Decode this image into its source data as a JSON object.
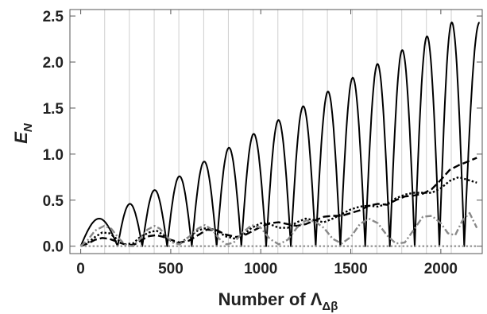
{
  "chart_data": {
    "type": "line",
    "xlabel": "Number of Λ",
    "xlabel_subscript": "Δβ",
    "ylabel": "E",
    "ylabel_subscript": "N",
    "xlim": [
      -60,
      2230
    ],
    "ylim": [
      -0.08,
      2.57
    ],
    "x_ticks": [
      0,
      500,
      1000,
      1500,
      2000
    ],
    "x_tick_labels": [
      "0",
      "500",
      "1000",
      "1500",
      "2000"
    ],
    "y_ticks": [
      0.0,
      0.5,
      1.0,
      1.5,
      2.0,
      2.5
    ],
    "y_tick_labels": [
      "0.0",
      "0.5",
      "1.0",
      "1.5",
      "2.0",
      "2.5"
    ],
    "grid_x": [
      133,
      270,
      408,
      545,
      683,
      820,
      958,
      1095,
      1233,
      1370,
      1508,
      1645,
      1783,
      1920,
      2058
    ],
    "legend": "none",
    "series": [
      {
        "style": "solid",
        "color": "#000000",
        "lobe_zeros": [
          0,
          205,
          342,
          480,
          617,
          755,
          892,
          1030,
          1167,
          1305,
          1442,
          1580,
          1717,
          1855,
          1992,
          2130
        ],
        "lobe_peaks": [
          {
            "x": 0,
            "y": 0.0
          },
          {
            "x": 273,
            "y": 0.3
          },
          {
            "x": 411,
            "y": 0.46
          },
          {
            "x": 548,
            "y": 0.61
          },
          {
            "x": 686,
            "y": 0.76
          },
          {
            "x": 823,
            "y": 0.92
          },
          {
            "x": 961,
            "y": 1.07
          },
          {
            "x": 1098,
            "y": 1.22
          },
          {
            "x": 1236,
            "y": 1.37
          },
          {
            "x": 1373,
            "y": 1.52
          },
          {
            "x": 1511,
            "y": 1.68
          },
          {
            "x": 1648,
            "y": 1.83
          },
          {
            "x": 1786,
            "y": 1.98
          },
          {
            "x": 1923,
            "y": 2.13
          },
          {
            "x": 2061,
            "y": 2.28
          },
          {
            "x": 2210,
            "y": 2.43
          }
        ]
      },
      {
        "style": "dashed",
        "color": "#000000",
        "x": [
          0,
          40,
          80,
          120,
          160,
          200,
          260,
          300,
          340,
          380,
          420,
          460,
          500,
          550,
          600,
          660,
          700,
          760,
          800,
          860,
          900,
          950,
          1000,
          1050,
          1100,
          1150,
          1200,
          1250,
          1300,
          1350,
          1400,
          1450,
          1500,
          1550,
          1600,
          1650,
          1700,
          1750,
          1800,
          1850,
          1900,
          1950,
          2000,
          2050,
          2100,
          2150,
          2200
        ],
        "y": [
          0.0,
          0.03,
          0.07,
          0.09,
          0.08,
          0.05,
          0.01,
          0.02,
          0.07,
          0.11,
          0.12,
          0.1,
          0.07,
          0.04,
          0.06,
          0.13,
          0.18,
          0.17,
          0.13,
          0.1,
          0.11,
          0.16,
          0.21,
          0.25,
          0.26,
          0.24,
          0.22,
          0.24,
          0.28,
          0.32,
          0.33,
          0.33,
          0.36,
          0.39,
          0.44,
          0.46,
          0.45,
          0.5,
          0.54,
          0.55,
          0.57,
          0.62,
          0.72,
          0.83,
          0.88,
          0.92,
          0.96
        ]
      },
      {
        "style": "dotted",
        "color": "#000000",
        "x": [
          0,
          40,
          80,
          120,
          160,
          200,
          240,
          290,
          330,
          380,
          420,
          460,
          500,
          550,
          600,
          650,
          700,
          760,
          800,
          860,
          900,
          950,
          1000,
          1050,
          1100,
          1150,
          1200,
          1250,
          1300,
          1350,
          1400,
          1450,
          1500,
          1550,
          1600,
          1650,
          1700,
          1750,
          1800,
          1850,
          1900,
          1950,
          2000,
          2050,
          2100,
          2150,
          2200
        ],
        "y": [
          0.0,
          0.04,
          0.1,
          0.15,
          0.14,
          0.08,
          0.02,
          0.03,
          0.1,
          0.15,
          0.17,
          0.12,
          0.06,
          0.03,
          0.1,
          0.17,
          0.2,
          0.17,
          0.11,
          0.08,
          0.12,
          0.2,
          0.25,
          0.24,
          0.2,
          0.2,
          0.26,
          0.3,
          0.28,
          0.26,
          0.3,
          0.35,
          0.4,
          0.43,
          0.44,
          0.43,
          0.46,
          0.52,
          0.56,
          0.58,
          0.58,
          0.58,
          0.63,
          0.71,
          0.75,
          0.72,
          0.69
        ]
      },
      {
        "style": "dash-dot",
        "color": "#888888",
        "x": [
          0,
          40,
          80,
          130,
          170,
          210,
          250,
          290,
          330,
          370,
          410,
          440,
          470,
          510,
          550,
          600,
          650,
          690,
          730,
          770,
          810,
          850,
          900,
          950,
          1000,
          1050,
          1100,
          1150,
          1200,
          1250,
          1300,
          1350,
          1400,
          1450,
          1500,
          1550,
          1600,
          1650,
          1700,
          1750,
          1800,
          1850,
          1900,
          1950,
          2000,
          2040,
          2080,
          2120,
          2160,
          2200
        ],
        "y": [
          0.0,
          0.07,
          0.17,
          0.22,
          0.19,
          0.09,
          0.01,
          0.0,
          0.08,
          0.18,
          0.22,
          0.19,
          0.12,
          0.04,
          0.02,
          0.1,
          0.19,
          0.23,
          0.18,
          0.08,
          0.02,
          0.04,
          0.15,
          0.23,
          0.2,
          0.08,
          0.02,
          0.07,
          0.2,
          0.28,
          0.27,
          0.2,
          0.08,
          0.03,
          0.1,
          0.24,
          0.3,
          0.25,
          0.12,
          0.03,
          0.04,
          0.18,
          0.32,
          0.33,
          0.25,
          0.14,
          0.12,
          0.28,
          0.36,
          0.2
        ]
      },
      {
        "style": "dotted",
        "color": "#999999",
        "x": [
          0,
          2200
        ],
        "y": [
          0.0,
          0.0
        ]
      }
    ]
  }
}
